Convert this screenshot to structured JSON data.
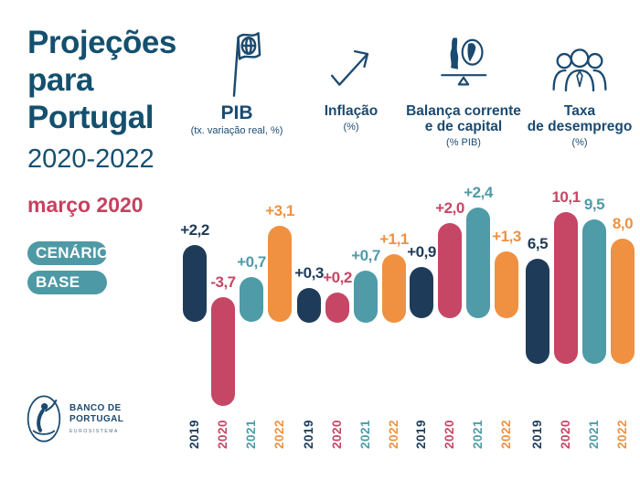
{
  "brand": {
    "title_lines": [
      "Projeções",
      "para",
      "Portugal"
    ],
    "period": "2020-2022",
    "date": "março 2020",
    "scenario_lines": [
      "CENÁRIO",
      "BASE"
    ],
    "logo": {
      "name_lines": [
        "BANCO DE",
        "PORTUGAL"
      ],
      "subtext": "EUROSISTEMA"
    }
  },
  "palette": {
    "navy_2019": "#1E3C59",
    "crimson_2020": "#C64665",
    "teal_2021": "#4F9BA7",
    "orange_2022": "#EF9140",
    "header_navy": "#1B4A70",
    "title_navy": "#14506E",
    "date_red": "#C8405F",
    "pill_teal": "#4D9AA6"
  },
  "chart_data": [
    {
      "type": "bar",
      "title_lines": [
        "PIB"
      ],
      "subtitle": "(tx. variação real, %)",
      "icon": "flag-sphere-icon",
      "categories": [
        "2019",
        "2020",
        "2021",
        "2022"
      ],
      "values": [
        2.2,
        -3.7,
        0.7,
        3.1
      ],
      "value_labels": [
        "+2,2",
        "-3,7",
        "+0,7",
        "+3,1"
      ],
      "bar_colors": [
        "#1E3C59",
        "#C64665",
        "#4F9BA7",
        "#EF9140"
      ]
    },
    {
      "type": "bar",
      "title_lines": [
        "Inflação"
      ],
      "subtitle": "(%)",
      "icon": "trend-arrow-icon",
      "categories": [
        "2019",
        "2020",
        "2021",
        "2022"
      ],
      "values": [
        0.3,
        0.2,
        0.7,
        1.1
      ],
      "value_labels": [
        "+0,3",
        "+0,2",
        "+0,7",
        "+1,1"
      ],
      "bar_colors": [
        "#1E3C59",
        "#C64665",
        "#4F9BA7",
        "#EF9140"
      ]
    },
    {
      "type": "bar",
      "title_lines": [
        "Balança corrente",
        "e de capital"
      ],
      "subtitle": "(% PIB)",
      "icon": "balance-scale-icon",
      "categories": [
        "2019",
        "2020",
        "2021",
        "2022"
      ],
      "values": [
        0.9,
        2.0,
        2.4,
        1.3
      ],
      "value_labels": [
        "+0,9",
        "+2,0",
        "+2,4",
        "+1,3"
      ],
      "bar_colors": [
        "#1E3C59",
        "#C64665",
        "#4F9BA7",
        "#EF9140"
      ]
    },
    {
      "type": "bar",
      "title_lines": [
        "Taxa",
        "de desemprego"
      ],
      "subtitle": "(%)",
      "icon": "people-icon",
      "categories": [
        "2019",
        "2020",
        "2021",
        "2022"
      ],
      "values": [
        6.5,
        10.1,
        9.5,
        8.0
      ],
      "value_labels": [
        "6,5",
        "10,1",
        "9,5",
        "8,0"
      ],
      "bar_colors": [
        "#1E3C59",
        "#C64665",
        "#4F9BA7",
        "#EF9140"
      ]
    }
  ]
}
